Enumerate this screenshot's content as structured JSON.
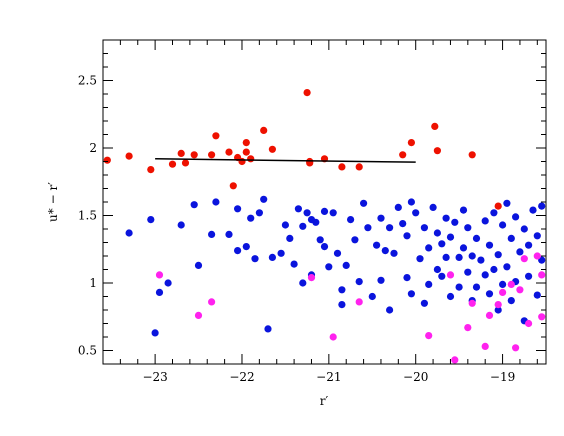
{
  "chart_data": {
    "type": "scatter",
    "title": "",
    "xlabel": "r′",
    "ylabel": "u* − r′",
    "xlim": [
      -23.6,
      -18.5
    ],
    "ylim": [
      0.4,
      2.8
    ],
    "x_ticks": [
      -23,
      -22,
      -21,
      -20,
      -19
    ],
    "x_tick_labels": [
      "−23",
      "−22",
      "−21",
      "−20",
      "−19"
    ],
    "y_ticks": [
      0.5,
      1,
      1.5,
      2,
      2.5
    ],
    "y_tick_labels": [
      "0.5",
      "1",
      "1.5",
      "2",
      "2.5"
    ],
    "grid": false,
    "colors": {
      "red": "#ee1100",
      "blue": "#0a14dd",
      "magenta": "#ff22ee",
      "line": "#000000"
    },
    "fit_line": {
      "x": [
        -23.0,
        -20.0
      ],
      "y": [
        1.92,
        1.895
      ]
    },
    "series": [
      {
        "color": "red",
        "x": [
          -23.55,
          -23.3,
          -23.05,
          -22.8,
          -22.7,
          -22.65,
          -22.55,
          -22.3,
          -22.35,
          -22.15,
          -22.1,
          -22.05,
          -22.0,
          -21.95,
          -21.95,
          -21.9,
          -21.75,
          -21.65,
          -21.25,
          -21.22,
          -21.22,
          -21.05,
          -20.85,
          -20.65,
          -20.15,
          -20.05,
          -19.78,
          -19.75,
          -19.35,
          -19.05
        ],
        "y": [
          1.91,
          1.94,
          1.84,
          1.88,
          1.96,
          1.89,
          1.95,
          2.09,
          1.95,
          1.97,
          1.72,
          1.93,
          1.9,
          2.04,
          1.97,
          1.92,
          2.13,
          1.99,
          2.41,
          1.9,
          1.89,
          1.92,
          1.86,
          1.86,
          1.95,
          2.04,
          2.16,
          1.98,
          1.95,
          1.57
        ]
      },
      {
        "color": "blue",
        "x": [
          -23.3,
          -23.05,
          -23.0,
          -22.95,
          -22.85,
          -22.7,
          -22.55,
          -22.5,
          -22.35,
          -22.3,
          -22.15,
          -22.05,
          -22.05,
          -21.95,
          -21.9,
          -21.85,
          -21.8,
          -21.75,
          -21.7,
          -21.65,
          -21.55,
          -21.5,
          -21.45,
          -21.4,
          -21.35,
          -21.3,
          -21.3,
          -21.25,
          -21.2,
          -21.2,
          -21.15,
          -21.1,
          -21.05,
          -21.05,
          -21.0,
          -20.95,
          -20.9,
          -20.85,
          -20.85,
          -20.8,
          -20.75,
          -20.7,
          -20.65,
          -20.6,
          -20.55,
          -20.5,
          -20.45,
          -20.4,
          -20.4,
          -20.35,
          -20.3,
          -20.3,
          -20.25,
          -20.2,
          -20.15,
          -20.1,
          -20.1,
          -20.05,
          -20.05,
          -20.0,
          -19.95,
          -19.9,
          -19.9,
          -19.85,
          -19.85,
          -19.8,
          -19.75,
          -19.75,
          -19.7,
          -19.7,
          -19.65,
          -19.65,
          -19.6,
          -19.6,
          -19.55,
          -19.5,
          -19.5,
          -19.45,
          -19.45,
          -19.4,
          -19.4,
          -19.35,
          -19.35,
          -19.3,
          -19.3,
          -19.25,
          -19.2,
          -19.2,
          -19.15,
          -19.15,
          -19.1,
          -19.1,
          -19.05,
          -19.05,
          -19.0,
          -19.0,
          -18.95,
          -18.95,
          -18.9,
          -18.9,
          -18.85,
          -18.85,
          -18.8,
          -18.75,
          -18.75,
          -18.7,
          -18.7,
          -18.65,
          -18.6,
          -18.6,
          -18.55,
          -18.55
        ],
        "y": [
          1.37,
          1.47,
          0.63,
          0.93,
          1.0,
          1.43,
          1.58,
          1.13,
          1.36,
          1.6,
          1.36,
          1.55,
          1.24,
          1.27,
          1.48,
          1.18,
          1.52,
          1.62,
          0.66,
          1.19,
          1.22,
          1.43,
          1.33,
          1.14,
          1.55,
          1.0,
          1.42,
          1.52,
          1.47,
          1.06,
          1.45,
          1.32,
          1.53,
          1.27,
          1.12,
          1.52,
          1.22,
          0.84,
          0.95,
          1.13,
          1.47,
          1.32,
          1.01,
          1.59,
          1.41,
          0.9,
          1.28,
          1.48,
          1.02,
          1.24,
          1.41,
          0.8,
          1.22,
          1.56,
          1.44,
          1.04,
          1.35,
          0.92,
          1.6,
          1.52,
          1.18,
          1.41,
          0.85,
          1.26,
          0.99,
          1.56,
          1.1,
          1.37,
          1.05,
          1.29,
          1.48,
          1.19,
          0.9,
          1.34,
          1.45,
          1.19,
          0.97,
          1.54,
          1.26,
          1.08,
          1.41,
          0.87,
          1.2,
          1.33,
          0.97,
          1.17,
          1.46,
          1.06,
          0.92,
          1.28,
          1.52,
          1.1,
          0.8,
          1.21,
          1.43,
          0.99,
          1.59,
          1.12,
          1.33,
          0.87,
          1.49,
          1.01,
          1.23,
          0.72,
          1.4,
          1.28,
          1.05,
          1.54,
          0.91,
          1.35,
          1.57,
          1.17
        ]
      },
      {
        "color": "magenta",
        "x": [
          -22.95,
          -22.5,
          -22.35,
          -21.2,
          -20.95,
          -20.65,
          -19.85,
          -19.6,
          -19.55,
          -19.4,
          -19.35,
          -19.2,
          -19.15,
          -19.05,
          -19.0,
          -18.9,
          -18.85,
          -18.8,
          -18.75,
          -18.7,
          -18.6,
          -18.55,
          -18.55
        ],
        "y": [
          1.06,
          0.76,
          0.86,
          1.04,
          0.6,
          0.86,
          0.61,
          1.06,
          0.43,
          0.67,
          0.85,
          0.53,
          0.76,
          0.84,
          0.93,
          0.99,
          0.52,
          0.95,
          1.18,
          0.7,
          1.2,
          0.75,
          1.06
        ]
      }
    ]
  }
}
